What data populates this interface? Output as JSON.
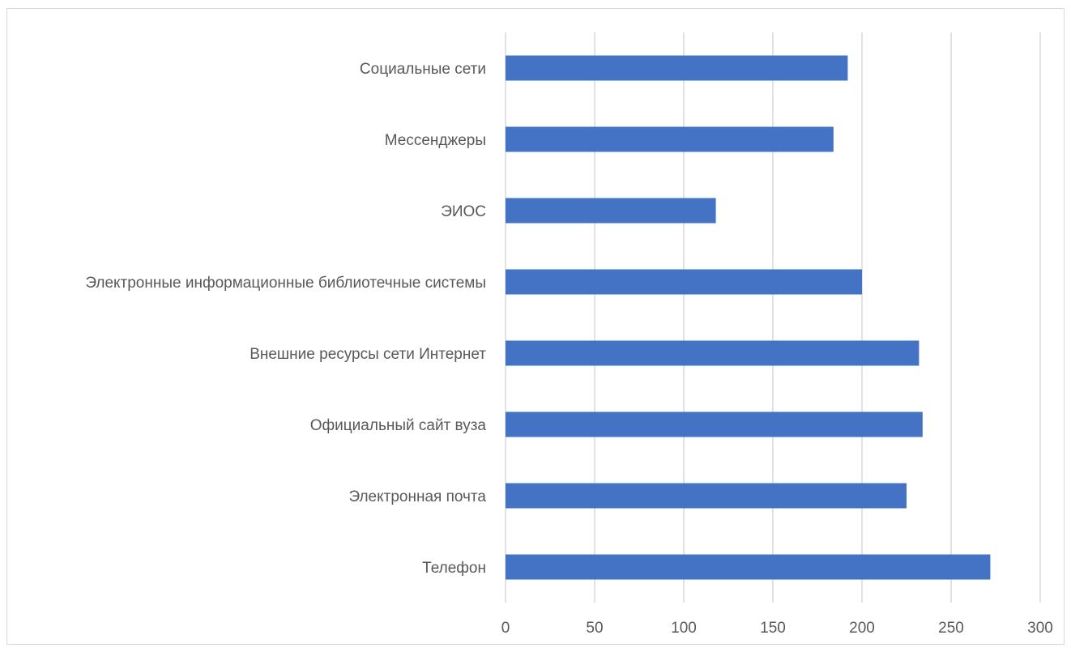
{
  "chart_data": {
    "type": "bar",
    "orientation": "horizontal",
    "categories": [
      "Социальные сети",
      "Мессенджеры",
      "ЭИОС",
      "Электронные информационные библиотечные системы",
      "Внешние ресурсы сети Интернет",
      "Официальный сайт вуза",
      "Электронная почта",
      "Телефон"
    ],
    "values": [
      192,
      184,
      118,
      200,
      232,
      234,
      225,
      272
    ],
    "xlim": [
      0,
      300
    ],
    "x_ticks": [
      0,
      50,
      100,
      150,
      200,
      250,
      300
    ],
    "title": "",
    "xlabel": "",
    "ylabel": "",
    "grid": "vertical",
    "legend": "none",
    "bar_color": "#4472c4",
    "grid_color": "#d9d9d9",
    "text_color": "#595959"
  }
}
